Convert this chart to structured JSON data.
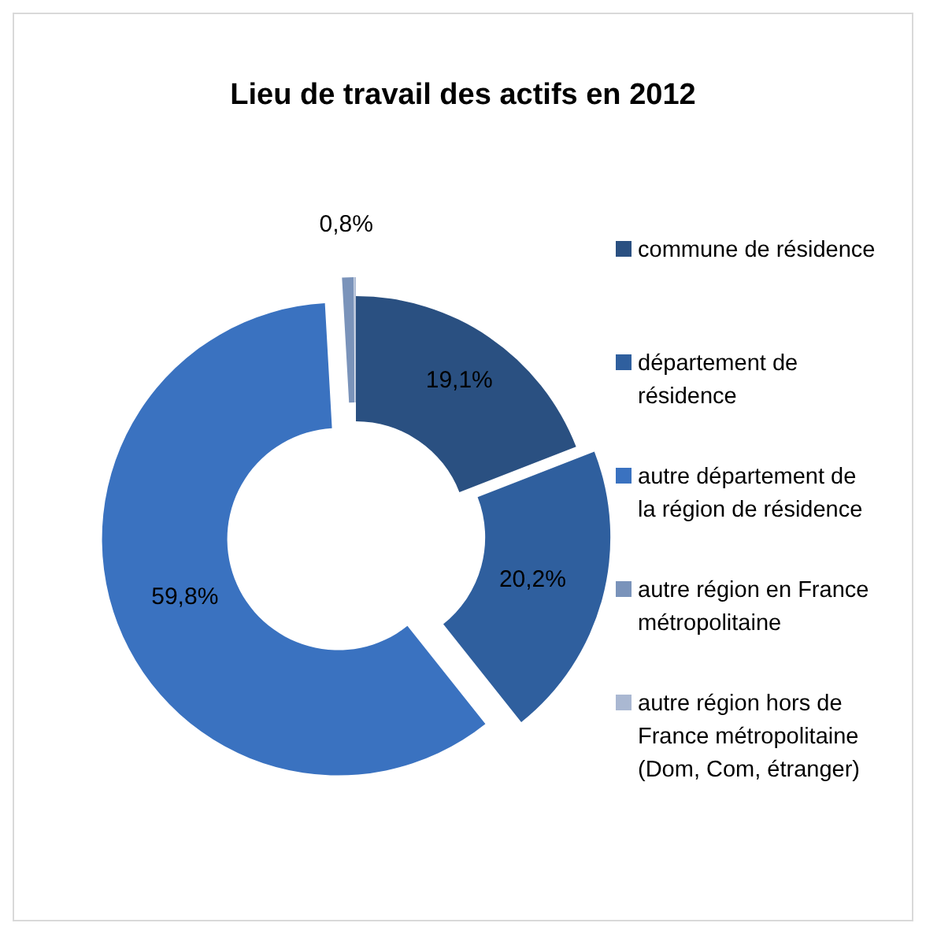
{
  "chart_data": {
    "type": "donut",
    "title": "Lieu de travail des actifs en 2012",
    "categories": [
      "commune de résidence",
      "département de résidence",
      "autre département de la région de résidence",
      "autre région en France métropolitaine",
      "autre région hors de France métropolitaine (Dom, Com, étranger)"
    ],
    "values": [
      19.1,
      20.2,
      59.8,
      0.8,
      0.1
    ],
    "value_labels": [
      "19,1%",
      "20,2%",
      "59,8%",
      "0,8%",
      null
    ],
    "colors": [
      "#2a5081",
      "#2f5f9e",
      "#3a72c0",
      "#7a93ba",
      "#aab8d2"
    ],
    "legend": "right"
  }
}
